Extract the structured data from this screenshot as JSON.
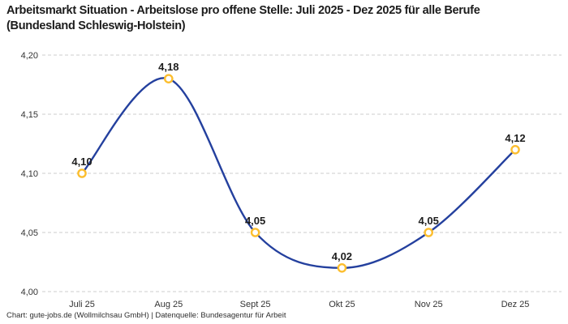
{
  "title": "Arbeitsmarkt Situation - Arbeitslose pro offene Stelle: Juli 2025 - Dez 2025 für alle Berufe (Bundesland Schleswig-Holstein)",
  "footer": "Chart: gute-jobs.de (Wollmilchsau GmbH) | Datenquelle: Bundesagentur für Arbeit",
  "chart_data": {
    "type": "line",
    "title": "Arbeitsmarkt Situation - Arbeitslose pro offene Stelle: Juli 2025 - Dez 2025 für alle Berufe (Bundesland Schleswig-Holstein)",
    "categories": [
      "Juli 25",
      "Aug 25",
      "Sept 25",
      "Okt 25",
      "Nov 25",
      "Dez 25"
    ],
    "values": [
      4.1,
      4.18,
      4.05,
      4.02,
      4.05,
      4.12
    ],
    "point_labels": [
      "4,10",
      "4,18",
      "4,05",
      "4,02",
      "4,05",
      "4,12"
    ],
    "xlabel": "",
    "ylabel": "",
    "ylim": [
      4.0,
      4.2
    ],
    "yticks": [
      4.0,
      4.05,
      4.1,
      4.15,
      4.2
    ],
    "ytick_labels": [
      "4,00",
      "4,05",
      "4,10",
      "4,15",
      "4,20"
    ],
    "grid": "horizontal-dashed",
    "legend": "none",
    "curve": "smooth-spline",
    "marker": "open-circle",
    "colors": {
      "line": "#24409e",
      "marker_stroke": "#fcbe2e",
      "marker_fill": "#ffffff",
      "gridline": "#cccccc",
      "tick_label": "#333333",
      "point_label": "#1d1d1d",
      "title": "#1c1c1c",
      "background": "#ffffff"
    }
  }
}
